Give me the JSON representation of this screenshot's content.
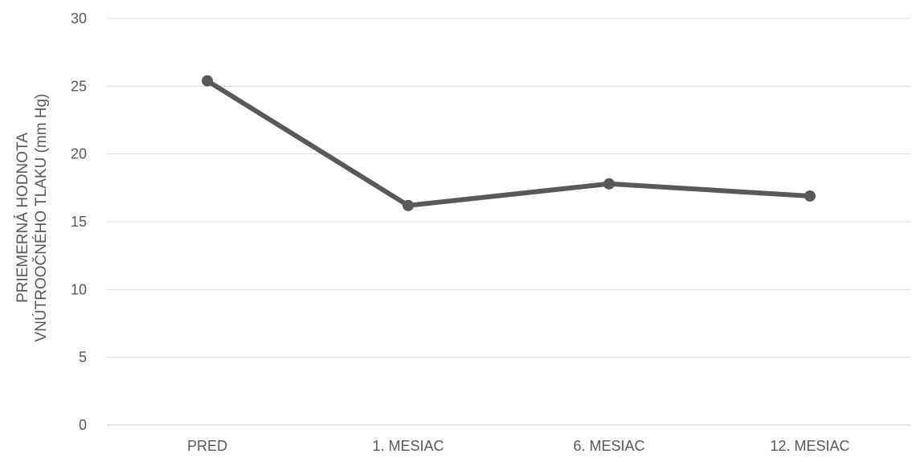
{
  "chart_data": {
    "type": "line",
    "categories": [
      "PRED",
      "1. MESIAC",
      "6. MESIAC",
      "12. MESIAC"
    ],
    "series": [
      {
        "values": [
          25.4,
          16.2,
          17.8,
          16.9
        ],
        "color": "#595959"
      }
    ],
    "ylabel_lines": [
      "PRIEMERNÁ HODNOTA",
      "VNÚTROOČNÉHO TLAKU (mm Hg)"
    ],
    "ylim": [
      0,
      30
    ],
    "yticks": [
      "0",
      "5",
      "10",
      "15",
      "20",
      "25",
      "30"
    ],
    "grid": true,
    "legend": "none",
    "colors": {
      "gridline": "#d9d9d9",
      "tick_text": "#595959",
      "axis_label": "#595959"
    }
  }
}
